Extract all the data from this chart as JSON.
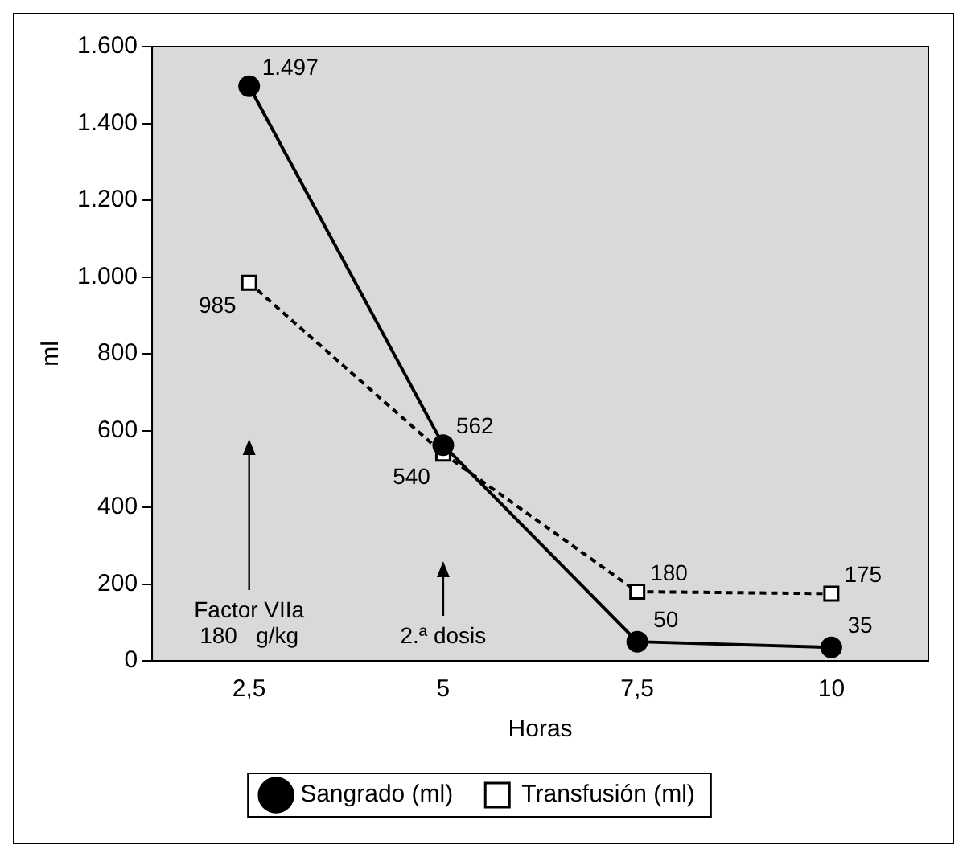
{
  "chart_data": {
    "type": "line",
    "xlabel": "Horas",
    "ylabel": "ml",
    "categories": [
      "2,5",
      "5",
      "7,5",
      "10"
    ],
    "series": [
      {
        "name": "Sangrado (ml)",
        "color": "#000000",
        "values": [
          1497,
          562,
          50,
          35
        ],
        "value_labels": [
          "1.497",
          "562",
          "50",
          "35"
        ],
        "marker": "circle",
        "line_style": "solid"
      },
      {
        "name": "Transfusión (ml)",
        "color": "#000000",
        "values": [
          985,
          540,
          180,
          175
        ],
        "value_labels": [
          "985",
          "540",
          "180",
          "175"
        ],
        "marker": "square",
        "line_style": "dashed"
      }
    ],
    "ylim": [
      0,
      1600
    ],
    "yticks": [
      0,
      200,
      400,
      600,
      800,
      {
        "value": 1000,
        "label": "1.000"
      },
      {
        "value": 1200,
        "label": "1.200"
      },
      {
        "value": 1400,
        "label": "1.400"
      },
      {
        "value": 1600,
        "label": "1.600"
      }
    ],
    "grid": false,
    "legend": "bottom",
    "annotations": [
      "Factor VIIa\n180   g/kg",
      "2.ª dosis"
    ]
  }
}
